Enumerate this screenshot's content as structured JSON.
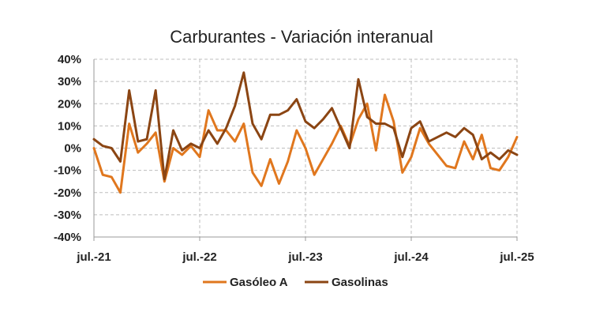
{
  "chart_data": {
    "type": "line",
    "title": "Carburantes - Variación interanual",
    "xlabel": "",
    "ylabel": "",
    "ylim": [
      -40,
      40
    ],
    "yticks": [
      "40%",
      "30%",
      "20%",
      "10%",
      "0%",
      "-10%",
      "-20%",
      "-30%",
      "-40%"
    ],
    "ytick_values": [
      40,
      30,
      20,
      10,
      0,
      -10,
      -20,
      -30,
      -40
    ],
    "x_labels": [
      "jul.-21",
      "jul.-22",
      "jul.-23",
      "jul.-24",
      "jul.-25"
    ],
    "x_label_index": [
      0,
      12,
      24,
      36,
      48
    ],
    "grid": true,
    "legend_position": "bottom",
    "series": [
      {
        "name": "Gasóleo A",
        "color": "#E0771E",
        "values": [
          0,
          -12,
          -13,
          -20,
          11,
          -2,
          2,
          7,
          -15,
          0,
          -3,
          1,
          -4,
          17,
          8,
          8,
          3,
          11,
          -11,
          -17,
          -5,
          -16,
          -6,
          8,
          0,
          -12,
          -5,
          2,
          10,
          1,
          13,
          20,
          -1,
          24,
          12,
          -11,
          -4,
          9,
          2,
          -3,
          -8,
          -9,
          3,
          -5,
          6,
          -9,
          -10,
          -4,
          5
        ]
      },
      {
        "name": "Gasolinas",
        "color": "#8B4513",
        "values": [
          4,
          1,
          0,
          -6,
          26,
          3,
          4,
          26,
          -14,
          8,
          -1,
          2,
          0,
          8,
          2,
          9,
          19,
          34,
          11,
          4,
          15,
          15,
          17,
          22,
          12,
          9,
          13,
          18,
          9,
          0,
          31,
          14,
          11,
          11,
          9,
          -4,
          9,
          12,
          3,
          5,
          7,
          5,
          9,
          6,
          -5,
          -2,
          -5,
          -1,
          -3
        ]
      }
    ]
  }
}
